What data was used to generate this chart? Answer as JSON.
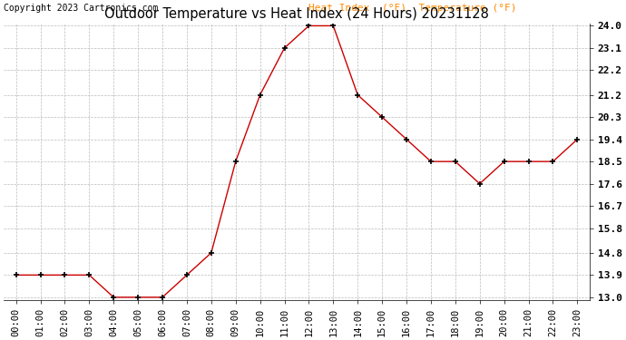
{
  "title": "Outdoor Temperature vs Heat Index (24 Hours) 20231128",
  "copyright": "Copyright 2023 Cartronics.com",
  "legend_heat": "Heat Index  (°F)",
  "legend_temp": "Temperature (°F)",
  "x_labels": [
    "00:00",
    "01:00",
    "02:00",
    "03:00",
    "04:00",
    "05:00",
    "06:00",
    "07:00",
    "08:00",
    "09:00",
    "10:00",
    "11:00",
    "12:00",
    "13:00",
    "14:00",
    "15:00",
    "16:00",
    "17:00",
    "18:00",
    "19:00",
    "20:00",
    "21:00",
    "22:00",
    "23:00"
  ],
  "temperature": [
    13.9,
    13.9,
    13.9,
    13.9,
    13.0,
    13.0,
    13.0,
    13.9,
    14.8,
    18.5,
    21.2,
    23.1,
    24.0,
    24.0,
    21.2,
    20.3,
    19.4,
    18.5,
    18.5,
    17.6,
    18.5,
    18.5,
    18.5,
    19.4
  ],
  "heat_index": [
    13.9,
    13.9,
    13.9,
    13.9,
    13.0,
    13.0,
    13.0,
    13.9,
    14.8,
    18.5,
    21.2,
    23.1,
    24.0,
    24.0,
    21.2,
    20.3,
    19.4,
    18.5,
    18.5,
    17.6,
    18.5,
    18.5,
    18.5,
    19.4
  ],
  "line_color": "#cc0000",
  "marker_color": "#000000",
  "legend_color": "#ff8800",
  "title_color": "#000000",
  "copyright_color": "#000000",
  "bg_color": "#ffffff",
  "grid_color": "#bbbbbb",
  "ylim_min": 13.0,
  "ylim_max": 24.0,
  "yticks": [
    13.0,
    13.9,
    14.8,
    15.8,
    16.7,
    17.6,
    18.5,
    19.4,
    20.3,
    21.2,
    22.2,
    23.1,
    24.0
  ]
}
